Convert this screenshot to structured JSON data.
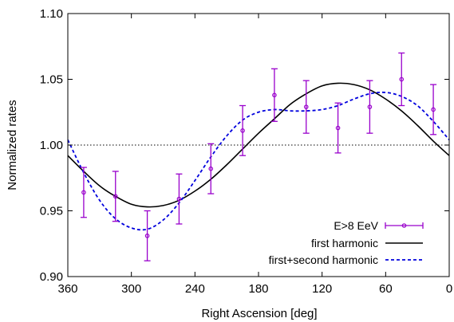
{
  "chart_data": {
    "type": "line",
    "xlabel": "Right Ascension [deg]",
    "ylabel": "Normalized rates",
    "xlim": [
      360,
      0
    ],
    "x_reversed": true,
    "ylim": [
      0.9,
      1.1
    ],
    "x_ticks": [
      360,
      300,
      240,
      180,
      120,
      60,
      0
    ],
    "y_ticks": [
      0.9,
      0.95,
      1.0,
      1.05,
      1.1
    ],
    "x_tick_labels": [
      "360",
      "300",
      "240",
      "180",
      "120",
      "60",
      "0"
    ],
    "y_tick_labels": [
      "0.90",
      "0.95",
      "1.00",
      "1.05",
      "1.10"
    ],
    "reference_line": {
      "y": 1.0,
      "style": "dotted"
    },
    "grid": false,
    "legend_position": "bottom-right",
    "series": [
      {
        "name": "E>8 EeV",
        "kind": "points-with-errorbars",
        "color": "#9900cc",
        "x": [
          345,
          315,
          285,
          255,
          225,
          195,
          165,
          135,
          105,
          75,
          45,
          15
        ],
        "y": [
          0.964,
          0.961,
          0.931,
          0.959,
          0.982,
          1.011,
          1.038,
          1.029,
          1.013,
          1.029,
          1.05,
          1.027
        ],
        "err": [
          0.019,
          0.019,
          0.019,
          0.019,
          0.019,
          0.019,
          0.02,
          0.02,
          0.019,
          0.02,
          0.02,
          0.019
        ]
      },
      {
        "name": "first harmonic",
        "kind": "curve",
        "color": "#000000",
        "style": "solid",
        "x": [
          360,
          345,
          330,
          315,
          300,
          285,
          270,
          255,
          240,
          225,
          210,
          195,
          180,
          165,
          150,
          135,
          120,
          105,
          90,
          75,
          60,
          45,
          30,
          15,
          0
        ],
        "y": [
          0.992,
          0.98,
          0.969,
          0.961,
          0.955,
          0.953,
          0.954,
          0.958,
          0.965,
          0.974,
          0.985,
          0.997,
          1.009,
          1.02,
          1.031,
          1.039,
          1.045,
          1.047,
          1.046,
          1.042,
          1.035,
          1.026,
          1.015,
          1.003,
          0.992
        ]
      },
      {
        "name": "first+second harmonic",
        "kind": "curve",
        "color": "#0000dd",
        "style": "dashed",
        "x": [
          360,
          345,
          330,
          315,
          300,
          285,
          270,
          255,
          240,
          225,
          210,
          195,
          180,
          165,
          150,
          135,
          120,
          105,
          90,
          75,
          60,
          45,
          30,
          15,
          0
        ],
        "y": [
          1.004,
          0.979,
          0.958,
          0.944,
          0.937,
          0.936,
          0.943,
          0.956,
          0.973,
          0.991,
          1.007,
          1.019,
          1.025,
          1.027,
          1.026,
          1.026,
          1.027,
          1.03,
          1.035,
          1.039,
          1.04,
          1.037,
          1.03,
          1.018,
          1.004
        ]
      }
    ]
  }
}
